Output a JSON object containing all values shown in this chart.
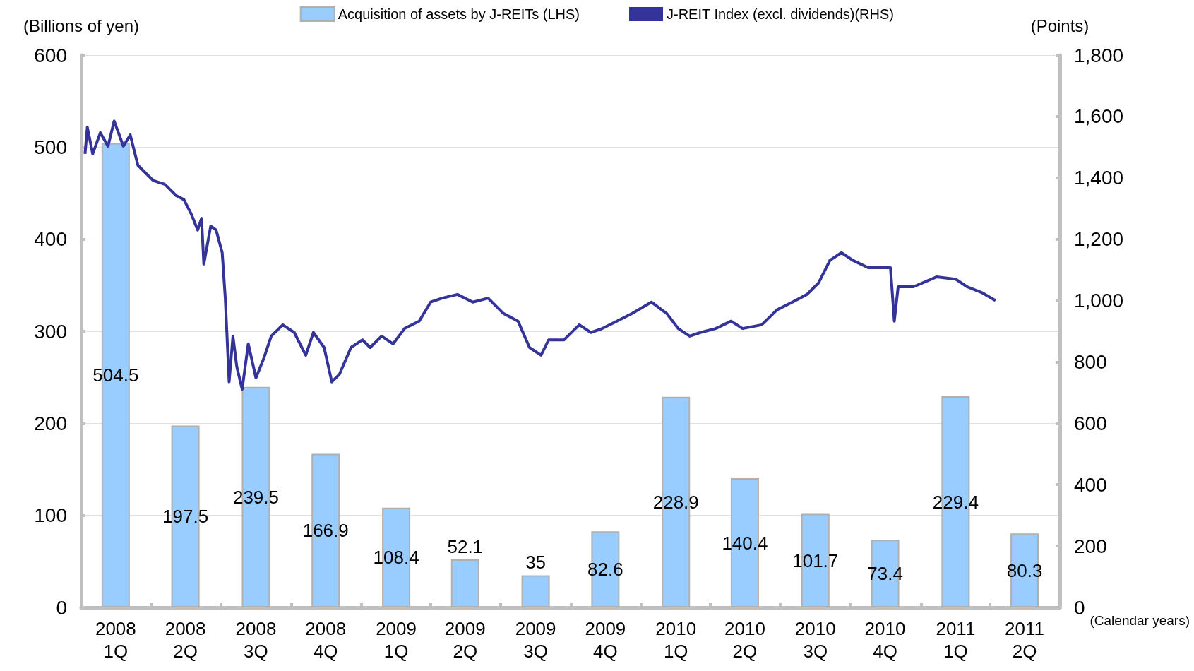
{
  "chart_data": {
    "type": "bar",
    "ylabel": "(Billions of yen)",
    "y2label": "(Points)",
    "annotations": [
      "(Calendar years)"
    ],
    "x": [
      "2008-02-15",
      "2008-05-16",
      "2008-08-16",
      "2008-11-15",
      "2009-02-15",
      "2009-05-16",
      "2009-08-16",
      "2009-11-15",
      "2010-02-15",
      "2010-05-16",
      "2010-08-16",
      "2010-11-15",
      "2011-02-15",
      "2011-05-16"
    ],
    "xlim": [
      "2008-01-01",
      "2011-07-01"
    ],
    "xticks": [
      {
        "value": "2008-01-01",
        "label": null
      },
      {
        "value": "2008-02-15",
        "label": "2008\n1Q"
      },
      {
        "value": "2008-04-01",
        "label": null
      },
      {
        "value": "2008-05-16",
        "label": "2008\n2Q"
      },
      {
        "value": "2008-07-01",
        "label": null
      },
      {
        "value": "2008-08-16",
        "label": "2008\n3Q"
      },
      {
        "value": "2008-10-01",
        "label": null
      },
      {
        "value": "2008-11-15",
        "label": "2008\n4Q"
      },
      {
        "value": "2009-01-01",
        "label": null
      },
      {
        "value": "2009-02-15",
        "label": "2009\n1Q"
      },
      {
        "value": "2009-04-01",
        "label": null
      },
      {
        "value": "2009-05-16",
        "label": "2009\n2Q"
      },
      {
        "value": "2009-07-01",
        "label": null
      },
      {
        "value": "2009-08-16",
        "label": "2009\n3Q"
      },
      {
        "value": "2009-10-01",
        "label": null
      },
      {
        "value": "2009-11-15",
        "label": "2009\n4Q"
      },
      {
        "value": "2010-01-01",
        "label": null
      },
      {
        "value": "2010-02-15",
        "label": "2010\n1Q"
      },
      {
        "value": "2010-04-01",
        "label": null
      },
      {
        "value": "2010-05-16",
        "label": "2010\n2Q"
      },
      {
        "value": "2010-07-01",
        "label": null
      },
      {
        "value": "2010-08-16",
        "label": "2010\n3Q"
      },
      {
        "value": "2010-10-01",
        "label": null
      },
      {
        "value": "2010-11-15",
        "label": "2010\n4Q"
      },
      {
        "value": "2011-01-01",
        "label": null
      },
      {
        "value": "2011-02-15",
        "label": "2011\n1Q"
      },
      {
        "value": "2011-04-01",
        "label": null
      },
      {
        "value": "2011-05-16",
        "label": "2011\n2Q"
      },
      {
        "value": "2011-07-01",
        "label": null
      }
    ],
    "series": [
      {
        "name": "Acquisition of assets by J-REITs (LHS)",
        "color": "#99ccff",
        "values": [
          504.5,
          197.5,
          239.5,
          166.9,
          108.4,
          52.1,
          35,
          82.6,
          228.9,
          140.4,
          101.7,
          73.4,
          229.4,
          80.3
        ],
        "value_labels": [
          "504.5",
          "197.5",
          "239.5",
          "166.9",
          "108.4",
          "52.1",
          "35",
          "82.6",
          "228.9",
          "140.4",
          "101.7",
          "73.4",
          "229.4",
          "80.3"
        ]
      },
      {
        "name": "J-REIT Index (excl. dividends)(RHS)",
        "type": "line",
        "axis": "y2",
        "color": "#333399",
        "x": [
          "2008-01-06",
          "2008-01-09",
          "2008-01-16",
          "2008-01-26",
          "2008-02-05",
          "2008-02-13",
          "2008-02-25",
          "2008-03-05",
          "2008-03-15",
          "2008-03-25",
          "2008-04-04",
          "2008-04-19",
          "2008-05-04",
          "2008-05-14",
          "2008-05-24",
          "2008-06-01",
          "2008-06-06",
          "2008-06-09",
          "2008-06-18",
          "2008-06-25",
          "2008-07-03",
          "2008-07-07",
          "2008-07-12",
          "2008-07-17",
          "2008-07-22",
          "2008-07-29",
          "2008-08-06",
          "2008-08-16",
          "2008-08-26",
          "2008-09-05",
          "2008-09-20",
          "2008-10-05",
          "2008-10-20",
          "2008-10-30",
          "2008-11-13",
          "2008-11-23",
          "2008-12-03",
          "2008-12-18",
          "2009-01-02",
          "2009-01-12",
          "2009-01-27",
          "2009-02-11",
          "2009-02-26",
          "2009-03-17",
          "2009-04-01",
          "2009-04-16",
          "2009-05-06",
          "2009-05-26",
          "2009-06-15",
          "2009-07-05",
          "2009-07-24",
          "2009-08-08",
          "2009-08-23",
          "2009-09-02",
          "2009-09-22",
          "2009-10-12",
          "2009-10-27",
          "2009-11-11",
          "2009-11-30",
          "2009-12-20",
          "2010-01-14",
          "2010-02-03",
          "2010-02-18",
          "2010-03-05",
          "2010-03-19",
          "2010-04-08",
          "2010-04-28",
          "2010-05-13",
          "2010-06-07",
          "2010-06-27",
          "2010-07-17",
          "2010-08-05",
          "2010-08-20",
          "2010-09-04",
          "2010-09-19",
          "2010-10-04",
          "2010-10-24",
          "2010-11-13",
          "2010-11-22",
          "2010-11-27",
          "2010-12-02",
          "2010-12-22",
          "2011-01-21",
          "2011-02-15",
          "2011-03-02",
          "2011-03-22",
          "2011-04-08"
        ],
        "values": [
          1478,
          1565,
          1478,
          1547,
          1503,
          1585,
          1503,
          1540,
          1441,
          1416,
          1391,
          1379,
          1342,
          1329,
          1280,
          1230,
          1268,
          1119,
          1243,
          1230,
          1156,
          1008,
          735,
          884,
          785,
          711,
          859,
          748,
          810,
          884,
          921,
          896,
          822,
          896,
          847,
          735,
          760,
          847,
          872,
          847,
          884,
          859,
          909,
          933,
          995,
          1008,
          1020,
          995,
          1008,
          958,
          933,
          847,
          822,
          872,
          872,
          921,
          896,
          909,
          933,
          958,
          995,
          958,
          909,
          884,
          896,
          909,
          933,
          909,
          921,
          970,
          995,
          1020,
          1057,
          1131,
          1156,
          1131,
          1107,
          1107,
          1107,
          933,
          1045,
          1045,
          1077,
          1070,
          1045,
          1025,
          1000
        ]
      }
    ],
    "ylim": [
      0,
      600
    ],
    "yticks": [
      0,
      100,
      200,
      300,
      400,
      500,
      600
    ],
    "y2lim": [
      0,
      1800
    ],
    "y2ticks": [
      0,
      200,
      400,
      600,
      800,
      {
        "value": 1000,
        "label": "1,000"
      },
      {
        "value": 1200,
        "label": "1,200"
      },
      {
        "value": 1400,
        "label": "1,400"
      },
      {
        "value": 1600,
        "label": "1,600"
      },
      {
        "value": 1800,
        "label": "1,800"
      }
    ],
    "grid": "y",
    "legend": "top",
    "marker": "none"
  }
}
